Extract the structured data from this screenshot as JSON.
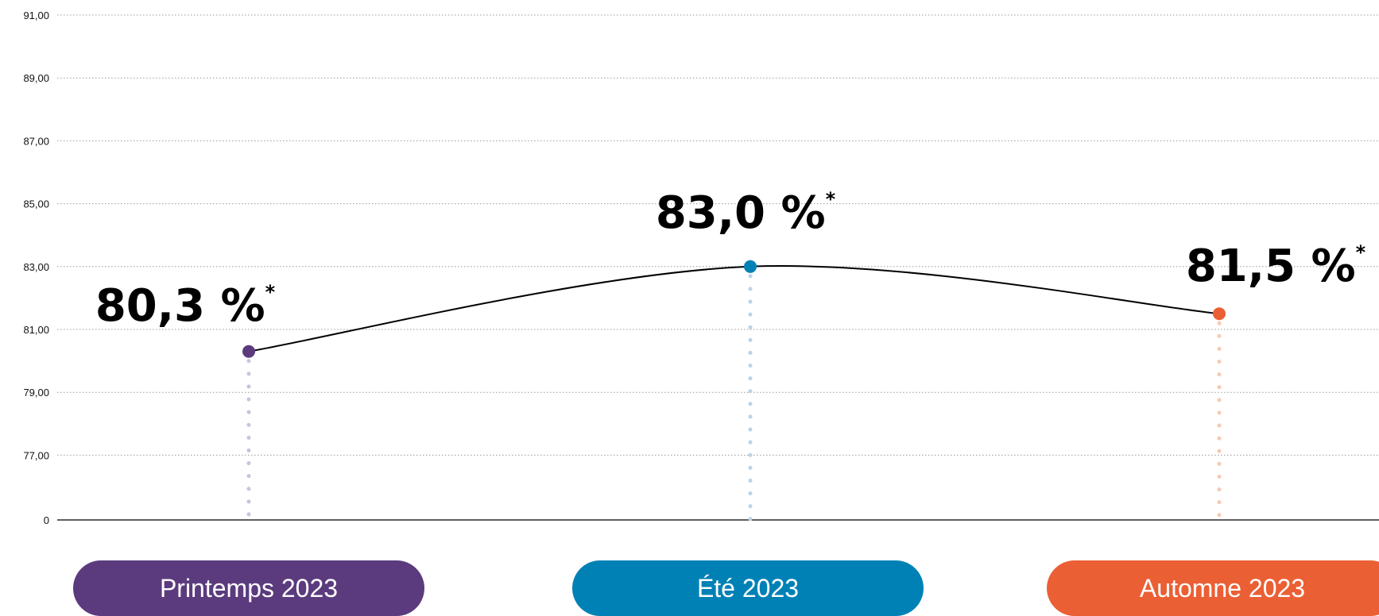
{
  "chart_data": {
    "type": "line",
    "categories": [
      "Printemps 2023",
      "Été 2023",
      "Automne 2023"
    ],
    "series": [
      {
        "values": [
          80.3,
          83.0,
          81.5
        ]
      }
    ],
    "data_labels": [
      "80,3 %",
      "83,0 %",
      "81,5 %"
    ],
    "data_label_marker": "*",
    "point_colors": [
      "#5b3b7e",
      "#0081b6",
      "#eb5f34"
    ],
    "stem_colors": [
      "#c4c6e0",
      "#b9d4ea",
      "#f8c9b6"
    ],
    "y_ticks": [
      {
        "label": "91,00",
        "value": 91
      },
      {
        "label": "89,00",
        "value": 89
      },
      {
        "label": "87,00",
        "value": 87
      },
      {
        "label": "85,00",
        "value": 85
      },
      {
        "label": "83,00",
        "value": 83
      },
      {
        "label": "81,00",
        "value": 81
      },
      {
        "label": "79,00",
        "value": 79
      },
      {
        "label": "77,00",
        "value": 77
      },
      {
        "label": "0",
        "value": 0
      }
    ],
    "ylim": [
      75,
      91
    ],
    "axis_break": true,
    "grid": true,
    "title": "",
    "xlabel": "",
    "ylabel": ""
  }
}
